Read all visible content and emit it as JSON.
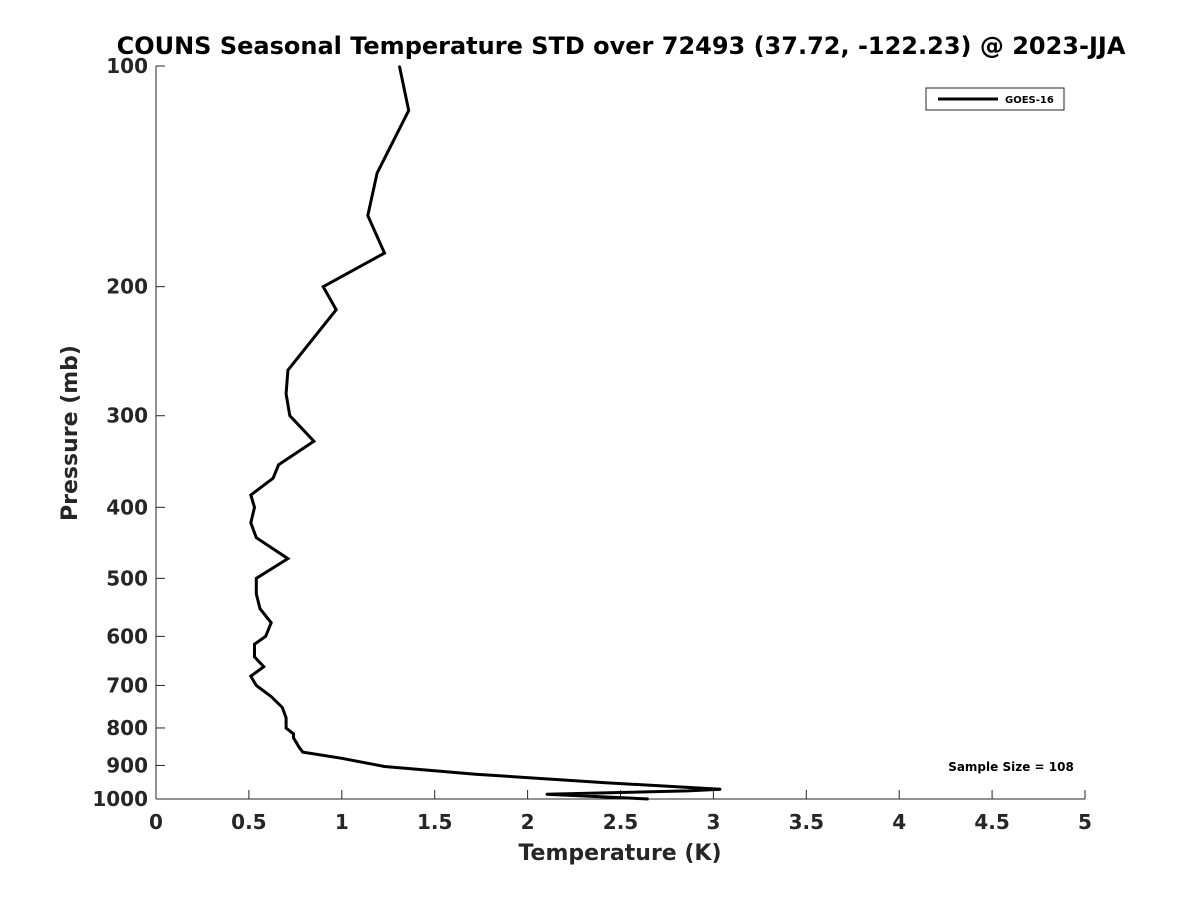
{
  "chart_data": {
    "type": "line",
    "title": "COUNS Seasonal Temperature STD over 72493 (37.72, -122.23) @ 2023-JJA",
    "xlabel": "Temperature (K)",
    "ylabel": "Pressure (mb)",
    "xlim": [
      0,
      5
    ],
    "ylim": [
      100,
      1000
    ],
    "y_scale": "log",
    "y_reversed": true,
    "xticks": [
      "0",
      "0.5",
      "1",
      "1.5",
      "2",
      "2.5",
      "3",
      "3.5",
      "4",
      "4.5",
      "5"
    ],
    "yticks": [
      "100",
      "200",
      "300",
      "400",
      "500",
      "600",
      "700",
      "800",
      "900",
      "1000"
    ],
    "grid": false,
    "legend": {
      "entries": [
        "GOES-16"
      ],
      "placement": "top-right"
    },
    "annotation": "Sample Size = 108",
    "series": [
      {
        "name": "GOES-16",
        "color": "#000000",
        "points": [
          [
            1.31,
            100
          ],
          [
            1.36,
            115
          ],
          [
            1.19,
            140
          ],
          [
            1.14,
            160
          ],
          [
            1.23,
            180
          ],
          [
            0.9,
            200
          ],
          [
            0.97,
            215
          ],
          [
            0.71,
            260
          ],
          [
            0.7,
            280
          ],
          [
            0.72,
            300
          ],
          [
            0.85,
            325
          ],
          [
            0.66,
            350
          ],
          [
            0.63,
            365
          ],
          [
            0.51,
            385
          ],
          [
            0.53,
            400
          ],
          [
            0.51,
            420
          ],
          [
            0.54,
            440
          ],
          [
            0.71,
            470
          ],
          [
            0.54,
            500
          ],
          [
            0.54,
            525
          ],
          [
            0.56,
            550
          ],
          [
            0.62,
            575
          ],
          [
            0.59,
            600
          ],
          [
            0.53,
            615
          ],
          [
            0.53,
            640
          ],
          [
            0.58,
            660
          ],
          [
            0.51,
            680
          ],
          [
            0.54,
            700
          ],
          [
            0.62,
            725
          ],
          [
            0.68,
            750
          ],
          [
            0.7,
            775
          ],
          [
            0.7,
            800
          ],
          [
            0.74,
            815
          ],
          [
            0.74,
            825
          ],
          [
            0.77,
            850
          ],
          [
            0.79,
            863
          ],
          [
            1.0,
            880
          ],
          [
            1.23,
            903
          ],
          [
            1.72,
            925
          ],
          [
            2.42,
            950
          ],
          [
            3.04,
            970
          ],
          [
            2.86,
            975
          ],
          [
            2.1,
            985
          ],
          [
            2.65,
            1000
          ]
        ]
      }
    ]
  }
}
